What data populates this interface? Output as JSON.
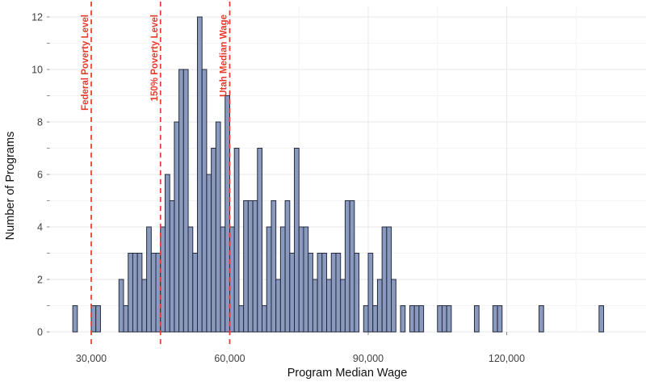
{
  "chart_data": {
    "type": "bar",
    "subtype": "histogram",
    "title": "",
    "xlabel": "Program Median Wage",
    "ylabel": "Number of Programs",
    "bin_width": 1000,
    "xlim": [
      21000,
      150000
    ],
    "ylim": [
      0,
      12.4
    ],
    "grid": "on",
    "bins": [
      [
        26000,
        1
      ],
      [
        30000,
        1
      ],
      [
        31000,
        1
      ],
      [
        36000,
        2
      ],
      [
        37000,
        1
      ],
      [
        38000,
        3
      ],
      [
        39000,
        3
      ],
      [
        40000,
        3
      ],
      [
        41000,
        2
      ],
      [
        42000,
        4
      ],
      [
        43000,
        3
      ],
      [
        44000,
        3
      ],
      [
        45000,
        4
      ],
      [
        46000,
        6
      ],
      [
        47000,
        5
      ],
      [
        48000,
        8
      ],
      [
        49000,
        10
      ],
      [
        50000,
        10
      ],
      [
        51000,
        4
      ],
      [
        52000,
        3
      ],
      [
        53000,
        12
      ],
      [
        54000,
        10
      ],
      [
        55000,
        6
      ],
      [
        56000,
        7
      ],
      [
        57000,
        8
      ],
      [
        58000,
        4
      ],
      [
        59000,
        9
      ],
      [
        60000,
        4
      ],
      [
        61000,
        7
      ],
      [
        62000,
        1
      ],
      [
        63000,
        5
      ],
      [
        64000,
        5
      ],
      [
        65000,
        5
      ],
      [
        66000,
        7
      ],
      [
        67000,
        1
      ],
      [
        68000,
        4
      ],
      [
        69000,
        5
      ],
      [
        70000,
        2
      ],
      [
        71000,
        4
      ],
      [
        72000,
        5
      ],
      [
        73000,
        3
      ],
      [
        74000,
        7
      ],
      [
        75000,
        4
      ],
      [
        76000,
        4
      ],
      [
        77000,
        3
      ],
      [
        78000,
        2
      ],
      [
        79000,
        3
      ],
      [
        80000,
        3
      ],
      [
        81000,
        2
      ],
      [
        82000,
        3
      ],
      [
        83000,
        3
      ],
      [
        84000,
        2
      ],
      [
        85000,
        5
      ],
      [
        86000,
        5
      ],
      [
        87000,
        3
      ],
      [
        89000,
        1
      ],
      [
        90000,
        3
      ],
      [
        91000,
        1
      ],
      [
        92000,
        2
      ],
      [
        93000,
        4
      ],
      [
        94000,
        4
      ],
      [
        95000,
        2
      ],
      [
        97000,
        1
      ],
      [
        99000,
        1
      ],
      [
        100000,
        1
      ],
      [
        101000,
        1
      ],
      [
        105000,
        1
      ],
      [
        106000,
        1
      ],
      [
        107000,
        1
      ],
      [
        113000,
        1
      ],
      [
        117000,
        1
      ],
      [
        118000,
        1
      ],
      [
        127000,
        1
      ],
      [
        140000,
        1
      ]
    ],
    "x_ticks": [
      {
        "value": 30000,
        "label": "30,000"
      },
      {
        "value": 60000,
        "label": "60,000"
      },
      {
        "value": 90000,
        "label": "90,000"
      },
      {
        "value": 120000,
        "label": "120,000"
      }
    ],
    "x_minor_gridlines": [
      45000,
      75000,
      105000,
      135000
    ],
    "y_ticks": [
      {
        "value": 0,
        "label": "0"
      },
      {
        "value": 2,
        "label": "2"
      },
      {
        "value": 4,
        "label": "4"
      },
      {
        "value": 6,
        "label": "6"
      },
      {
        "value": 8,
        "label": "8"
      },
      {
        "value": 10,
        "label": "10"
      },
      {
        "value": 12,
        "label": "12"
      }
    ],
    "y_minor_gridlines": [
      1,
      3,
      5,
      7,
      9,
      11
    ],
    "annotations": [
      {
        "x": 30000,
        "label": "Federal Poverty Level"
      },
      {
        "x": 45000,
        "label": "150% Poverty Level"
      },
      {
        "x": 60000,
        "label": "Utah Median Wage"
      }
    ],
    "legend": "none",
    "colors": {
      "bar_fill": "#8A99BE",
      "bar_stroke": "#242B3E",
      "annotation_red": "#E8392B",
      "grid_major": "#E7E7E7",
      "grid_minor": "#F4F4F4",
      "tick_mark": "#8A8A8A",
      "tick_text": "#404040",
      "axis_title_text": "#111111",
      "background": "#FFFFFF"
    }
  }
}
